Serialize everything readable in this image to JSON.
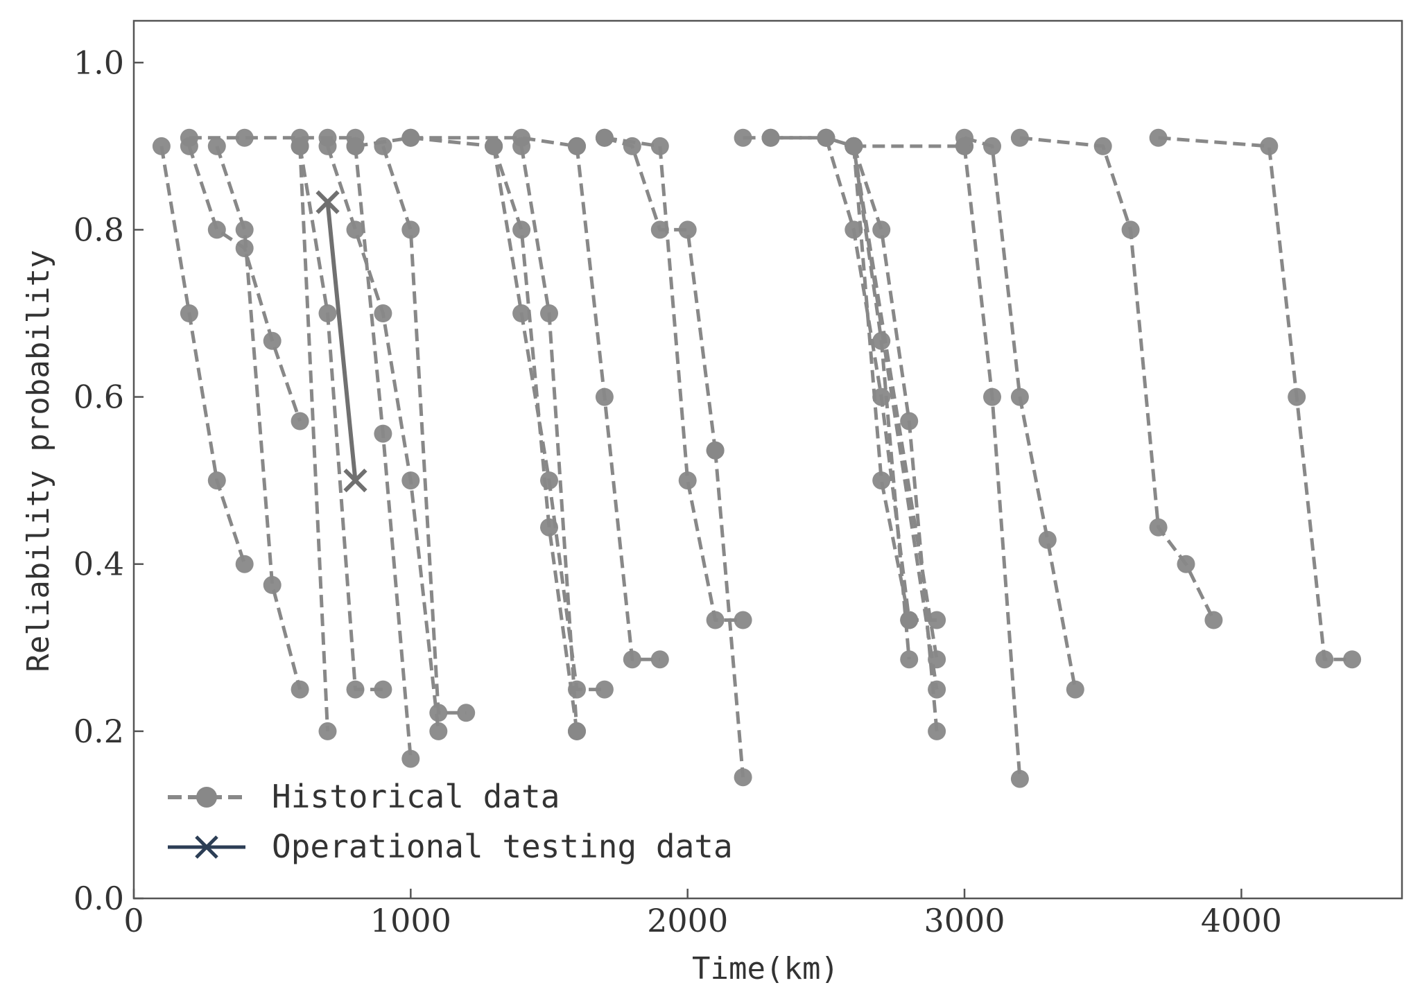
{
  "chart_data": {
    "type": "line",
    "xlabel": "Time(km)",
    "ylabel": "Reliability probability",
    "xlim": [
      0,
      4580
    ],
    "ylim": [
      0,
      1.05
    ],
    "xticks": [
      0,
      1000,
      2000,
      3000,
      4000
    ],
    "xtick_labels": [
      "0",
      "1000",
      "2000",
      "3000",
      "4000"
    ],
    "yticks": [
      0.0,
      0.2,
      0.4,
      0.6,
      0.8,
      1.0
    ],
    "ytick_labels": [
      "0.0",
      "0.2",
      "0.4",
      "0.6",
      "0.8",
      "1.0"
    ],
    "grid": false,
    "legend_position": "lower-left",
    "legend": [
      {
        "label": "Historical data",
        "marker": "circle",
        "style": "dashed",
        "color": "#888888"
      },
      {
        "label": "Operational testing data",
        "marker": "x",
        "style": "solid",
        "color": "#2c3e55"
      }
    ],
    "series": [
      {
        "name": "Historical data",
        "style": "dashed",
        "marker": "circle",
        "color": "#888888",
        "x": [
          100,
          200,
          300,
          400
        ],
        "y": [
          0.9,
          0.7,
          0.5,
          0.4
        ]
      },
      {
        "name": "Historical data",
        "style": "dashed",
        "marker": "circle",
        "color": "#888888",
        "x": [
          200,
          300,
          400,
          500,
          600
        ],
        "y": [
          0.9,
          0.8,
          0.778,
          0.667,
          0.571
        ]
      },
      {
        "name": "Historical data",
        "style": "dashed",
        "marker": "circle",
        "color": "#888888",
        "x": [
          300,
          400,
          500,
          600
        ],
        "y": [
          0.9,
          0.8,
          0.375,
          0.25
        ]
      },
      {
        "name": "Historical data",
        "style": "dashed",
        "marker": "circle",
        "color": "#888888",
        "x": [
          200,
          400,
          600,
          700,
          800
        ],
        "y": [
          0.91,
          0.91,
          0.91,
          0.91,
          0.91
        ]
      },
      {
        "name": "Historical data",
        "style": "dashed",
        "marker": "circle",
        "color": "#888888",
        "x": [
          600,
          700,
          800,
          900
        ],
        "y": [
          0.9,
          0.7,
          0.25,
          0.25
        ]
      },
      {
        "name": "Historical data",
        "style": "dashed",
        "marker": "circle",
        "color": "#888888",
        "x": [
          600,
          700
        ],
        "y": [
          0.9,
          0.2
        ]
      },
      {
        "name": "Historical data",
        "style": "dashed",
        "marker": "circle",
        "color": "#888888",
        "x": [
          700,
          800,
          900,
          1000,
          1100
        ],
        "y": [
          0.9,
          0.8,
          0.7,
          0.5,
          0.2
        ]
      },
      {
        "name": "Historical data",
        "style": "dashed",
        "marker": "circle",
        "color": "#888888",
        "x": [
          800,
          900,
          1000
        ],
        "y": [
          0.9,
          0.556,
          0.167
        ]
      },
      {
        "name": "Historical data",
        "style": "dashed",
        "marker": "circle",
        "color": "#888888",
        "x": [
          900,
          1000,
          1100,
          1200
        ],
        "y": [
          0.9,
          0.8,
          0.222,
          0.222
        ]
      },
      {
        "name": "Historical data",
        "style": "dashed",
        "marker": "circle",
        "color": "#888888",
        "x": [
          800,
          1000,
          1300
        ],
        "y": [
          0.9,
          0.91,
          0.9
        ]
      },
      {
        "name": "Historical data",
        "style": "dashed",
        "marker": "circle",
        "color": "#888888",
        "x": [
          1000,
          1400,
          1600
        ],
        "y": [
          0.91,
          0.91,
          0.9
        ]
      },
      {
        "name": "Historical data",
        "style": "dashed",
        "marker": "circle",
        "color": "#888888",
        "x": [
          1300,
          1400,
          1500,
          1600,
          1700
        ],
        "y": [
          0.9,
          0.7,
          0.5,
          0.25,
          0.25
        ]
      },
      {
        "name": "Historical data",
        "style": "dashed",
        "marker": "circle",
        "color": "#888888",
        "x": [
          1300,
          1400,
          1500,
          1600
        ],
        "y": [
          0.9,
          0.8,
          0.444,
          0.2
        ]
      },
      {
        "name": "Historical data",
        "style": "dashed",
        "marker": "circle",
        "color": "#888888",
        "x": [
          1400,
          1500,
          1600
        ],
        "y": [
          0.9,
          0.7,
          0.2
        ]
      },
      {
        "name": "Historical data",
        "style": "dashed",
        "marker": "circle",
        "color": "#888888",
        "x": [
          1600,
          1700,
          1800,
          1900
        ],
        "y": [
          0.9,
          0.6,
          0.286,
          0.286
        ]
      },
      {
        "name": "Historical data",
        "style": "dashed",
        "marker": "circle",
        "color": "#888888",
        "x": [
          1700,
          1800,
          1900,
          2000,
          2100
        ],
        "y": [
          0.91,
          0.9,
          0.8,
          0.8,
          0.536
        ]
      },
      {
        "name": "Historical data",
        "style": "dashed",
        "marker": "circle",
        "color": "#888888",
        "x": [
          1700,
          1900,
          2000,
          2100,
          2200
        ],
        "y": [
          0.91,
          0.9,
          0.5,
          0.333,
          0.333
        ]
      },
      {
        "name": "Historical data",
        "style": "dashed",
        "marker": "circle",
        "color": "#888888",
        "x": [
          2100,
          2200
        ],
        "y": [
          0.536,
          0.145
        ]
      },
      {
        "name": "Historical data",
        "style": "dashed",
        "marker": "circle",
        "color": "#888888",
        "x": [
          2200,
          2300,
          2500,
          2600
        ],
        "y": [
          0.91,
          0.91,
          0.91,
          0.9
        ]
      },
      {
        "name": "Historical data",
        "style": "dashed",
        "marker": "circle",
        "color": "#888888",
        "x": [
          2300,
          2500,
          2600,
          2700,
          2800,
          2900
        ],
        "y": [
          0.91,
          0.91,
          0.8,
          0.6,
          0.333,
          0.333
        ]
      },
      {
        "name": "Historical data",
        "style": "dashed",
        "marker": "circle",
        "color": "#888888",
        "x": [
          2500,
          2600,
          2700,
          2800
        ],
        "y": [
          0.91,
          0.9,
          0.667,
          0.286
        ]
      },
      {
        "name": "Historical data",
        "style": "dashed",
        "marker": "circle",
        "color": "#888888",
        "x": [
          2600,
          2700,
          2800
        ],
        "y": [
          0.9,
          0.5,
          0.333
        ]
      },
      {
        "name": "Historical data",
        "style": "dashed",
        "marker": "circle",
        "color": "#888888",
        "x": [
          2600,
          2700,
          2800,
          2900
        ],
        "y": [
          0.9,
          0.8,
          0.571,
          0.2
        ]
      },
      {
        "name": "Historical data",
        "style": "dashed",
        "marker": "circle",
        "color": "#888888",
        "x": [
          2600,
          2900
        ],
        "y": [
          0.9,
          0.25
        ]
      },
      {
        "name": "Historical data",
        "style": "dashed",
        "marker": "circle",
        "color": "#888888",
        "x": [
          2600,
          2900
        ],
        "y": [
          0.9,
          0.286
        ]
      },
      {
        "name": "Historical data",
        "style": "dashed",
        "marker": "circle",
        "color": "#888888",
        "x": [
          2600,
          3000
        ],
        "y": [
          0.9,
          0.9
        ]
      },
      {
        "name": "Historical data",
        "style": "dashed",
        "marker": "circle",
        "color": "#888888",
        "x": [
          3000,
          3100,
          3200
        ],
        "y": [
          0.9,
          0.6,
          0.143
        ]
      },
      {
        "name": "Historical data",
        "style": "dashed",
        "marker": "circle",
        "color": "#888888",
        "x": [
          3000,
          3100,
          3200,
          3300,
          3400
        ],
        "y": [
          0.91,
          0.9,
          0.6,
          0.429,
          0.25
        ]
      },
      {
        "name": "Historical data",
        "style": "dashed",
        "marker": "circle",
        "color": "#888888",
        "x": [
          3200,
          3500,
          3600,
          3700,
          3800,
          3900
        ],
        "y": [
          0.91,
          0.9,
          0.8,
          0.444,
          0.4,
          0.333
        ]
      },
      {
        "name": "Historical data",
        "style": "dashed",
        "marker": "circle",
        "color": "#888888",
        "x": [
          3700,
          4100,
          4200,
          4300,
          4400
        ],
        "y": [
          0.91,
          0.9,
          0.6,
          0.286,
          0.286
        ]
      },
      {
        "name": "Operational testing data",
        "style": "solid",
        "marker": "x",
        "color": "#707070",
        "x": [
          700,
          800
        ],
        "y": [
          0.833,
          0.5
        ]
      }
    ]
  }
}
